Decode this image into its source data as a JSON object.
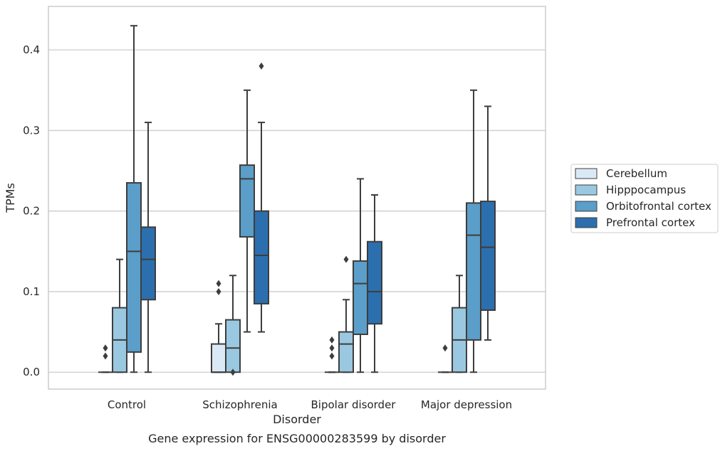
{
  "chart_data": {
    "type": "box",
    "title": "",
    "caption": "Gene expression for ENSG00000283599 by disorder",
    "xlabel": "Disorder",
    "ylabel": "TPMs",
    "ylim": [
      -0.021,
      0.454
    ],
    "yticks": [
      "0.0",
      "0.1",
      "0.2",
      "0.3",
      "0.4"
    ],
    "ytick_values": [
      0.0,
      0.1,
      0.2,
      0.3,
      0.4
    ],
    "grid": "horizontal",
    "legend_position": "right",
    "categories": [
      "Control",
      "Schizophrenia",
      "Bipolar disorder",
      "Major depression"
    ],
    "series": [
      {
        "name": "Cerebellum",
        "color": "#dbe9f6",
        "boxes": [
          {
            "whislo": 0,
            "q1": 0,
            "med": 0,
            "q3": 0,
            "whishi": 0,
            "fliers": [
              0.02,
              0.03
            ]
          },
          {
            "whislo": 0,
            "q1": 0,
            "med": 0,
            "q3": 0.035,
            "whishi": 0.06,
            "fliers": [
              0.1,
              0.11
            ]
          },
          {
            "whislo": 0,
            "q1": 0,
            "med": 0,
            "q3": 0,
            "whishi": 0,
            "fliers": [
              0.02,
              0.03,
              0.04
            ]
          },
          {
            "whislo": 0,
            "q1": 0,
            "med": 0,
            "q3": 0,
            "whishi": 0,
            "fliers": [
              0.03
            ]
          }
        ]
      },
      {
        "name": "Hipppocampus",
        "color": "#9ac8e0",
        "boxes": [
          {
            "whislo": 0,
            "q1": 0,
            "med": 0.04,
            "q3": 0.08,
            "whishi": 0.14,
            "fliers": []
          },
          {
            "whislo": 0,
            "q1": 0,
            "med": 0.03,
            "q3": 0.065,
            "whishi": 0.12,
            "fliers": [
              0
            ]
          },
          {
            "whislo": 0,
            "q1": 0,
            "med": 0.035,
            "q3": 0.05,
            "whishi": 0.09,
            "fliers": [
              0.14
            ]
          },
          {
            "whislo": 0,
            "q1": 0,
            "med": 0.04,
            "q3": 0.08,
            "whishi": 0.12,
            "fliers": []
          }
        ]
      },
      {
        "name": "Orbitofrontal cortex",
        "color": "#5a9ec9",
        "boxes": [
          {
            "whislo": 0,
            "q1": 0.025,
            "med": 0.15,
            "q3": 0.235,
            "whishi": 0.43,
            "fliers": []
          },
          {
            "whislo": 0.05,
            "q1": 0.168,
            "med": 0.24,
            "q3": 0.257,
            "whishi": 0.35,
            "fliers": []
          },
          {
            "whislo": 0,
            "q1": 0.047,
            "med": 0.11,
            "q3": 0.138,
            "whishi": 0.24,
            "fliers": []
          },
          {
            "whislo": 0,
            "q1": 0.04,
            "med": 0.17,
            "q3": 0.21,
            "whishi": 0.35,
            "fliers": []
          }
        ]
      },
      {
        "name": "Prefrontal cortex",
        "color": "#2c6fae",
        "boxes": [
          {
            "whislo": 0,
            "q1": 0.09,
            "med": 0.14,
            "q3": 0.18,
            "whishi": 0.31,
            "fliers": []
          },
          {
            "whislo": 0.05,
            "q1": 0.085,
            "med": 0.145,
            "q3": 0.2,
            "whishi": 0.31,
            "fliers": [
              0.38
            ]
          },
          {
            "whislo": 0,
            "q1": 0.06,
            "med": 0.1,
            "q3": 0.162,
            "whishi": 0.22,
            "fliers": []
          },
          {
            "whislo": 0.04,
            "q1": 0.077,
            "med": 0.155,
            "q3": 0.212,
            "whishi": 0.33,
            "fliers": []
          }
        ]
      }
    ]
  }
}
